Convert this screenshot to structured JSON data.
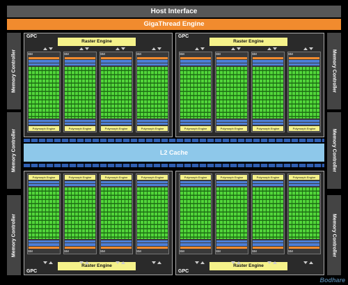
{
  "host_interface": "Host Interface",
  "gigathread_engine": "GigaThread Engine",
  "memory_controller": "Memory Controller",
  "gpc_label": "GPC",
  "raster_engine": "Raster Engine",
  "sm_label": "SM",
  "polymorph_engine": "Polymorph Engine",
  "l2_cache": "L2 Cache",
  "watermark": "Bodhare",
  "colors": {
    "giga": "#f18b2e",
    "cuda_core": "#52d63a",
    "l2": "#8ec8ea",
    "raster": "#f5f28a",
    "bus": "#2f5fb3"
  }
}
